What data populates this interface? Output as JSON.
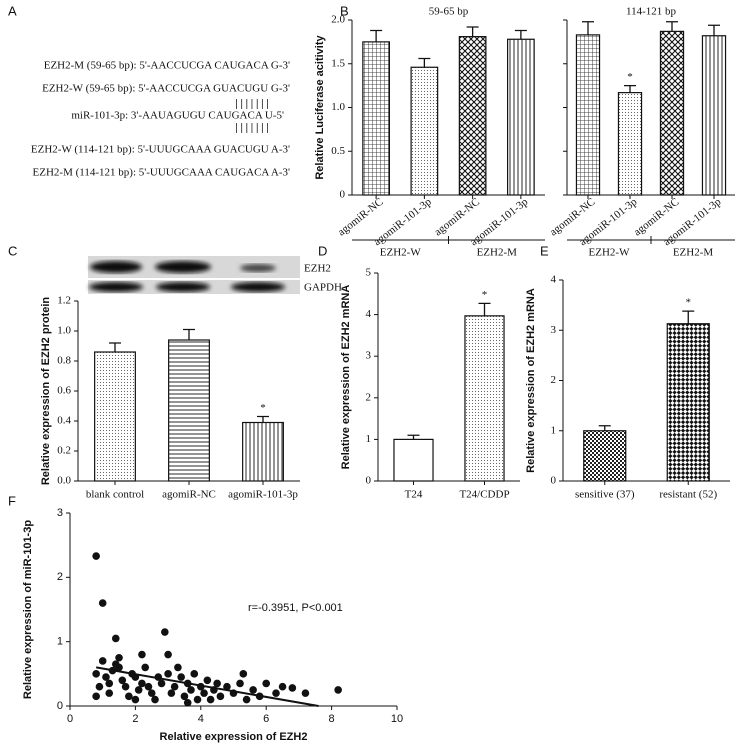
{
  "panel_labels": [
    "A",
    "B",
    "C",
    "D",
    "E",
    "F"
  ],
  "alignment": [
    "EZH2-M (59-65 bp): 5'-AACCUCGA CAUGACA G-3'",
    "EZH2-W (59-65 bp): 5'-AACCUCGA GUACUGU G-3'",
    "| | | | | | |",
    "miR-101-3p: 3'-AAUAGUGU CAUGACA U-5'",
    "| | | | | | |",
    "EZH2-W (114-121 bp): 5'-UUUGCAAA GUACUGU A-3'",
    "EZH2-M (114-121 bp): 5'-UUUGCAAA CAUGACA A-3'"
  ],
  "blot_labels": [
    "EZH2",
    "GAPDH"
  ],
  "chart_data": [
    {
      "type": "bar",
      "title": "59-65 bp",
      "ylabel": "Relative Luciferase acitivity",
      "categories": [
        "agomiR-NC",
        "agomiR-101-3p",
        "agomiR-NC",
        "agomiR-101-3p"
      ],
      "values": [
        1.75,
        1.46,
        1.81,
        1.78
      ],
      "errors": [
        0.13,
        0.1,
        0.11,
        0.1
      ],
      "patterns": [
        "grid",
        "dots",
        "diagcross",
        "vlines"
      ],
      "group_labels": [
        "EZH2-W",
        "EZH2-M"
      ],
      "label_rotation": 38,
      "ylim": [
        0,
        2
      ],
      "yticks": [
        0,
        0.5,
        {
          "value": 1,
          "label": "1.0"
        },
        1.5,
        {
          "value": 2,
          "label": "2.0"
        }
      ],
      "ytick_labels": true
    },
    {
      "type": "bar",
      "title": "114-121 bp",
      "categories": [
        "agomiR-NC",
        "agomiR-101-3p",
        "agomiR-NC",
        "agomiR-101-3p"
      ],
      "values": [
        1.83,
        1.17,
        1.87,
        1.82
      ],
      "errors": [
        0.15,
        0.08,
        0.11,
        0.12
      ],
      "significance": [
        null,
        "*",
        null,
        null
      ],
      "patterns": [
        "grid",
        "dots",
        "diagcross",
        "vlines"
      ],
      "group_labels": [
        "EZH2-W",
        "EZH2-M"
      ],
      "label_rotation": 38,
      "ylim": [
        0,
        2
      ],
      "yticks": [
        0,
        0.5,
        1,
        1.5,
        2
      ],
      "ytick_labels": false
    },
    {
      "type": "bar",
      "ylabel": "Relative expression of EZH2 protein",
      "categories": [
        "blank control",
        "agomiR-NC",
        "agomiR-101-3p"
      ],
      "values": [
        0.86,
        0.94,
        0.39
      ],
      "errors": [
        0.06,
        0.07,
        0.04
      ],
      "significance": [
        null,
        null,
        "*"
      ],
      "patterns": [
        "dots",
        "hlines",
        "vlines"
      ],
      "ylim": [
        0,
        1.2
      ],
      "yticks": [
        {
          "value": 0,
          "label": "0.0"
        },
        0.2,
        0.4,
        0.6,
        0.8,
        {
          "value": 1,
          "label": "1.0"
        },
        1.2
      ],
      "ytick_labels": true
    },
    {
      "type": "bar",
      "ylabel": "Relative expression of EZH2 mRNA",
      "categories": [
        "T24",
        "T24/CDDP"
      ],
      "values": [
        1.0,
        3.97
      ],
      "errors": [
        0.1,
        0.3
      ],
      "significance": [
        null,
        "*"
      ],
      "patterns": [
        "white",
        "dots"
      ],
      "ylim": [
        0,
        5
      ],
      "yticks": [
        0,
        1,
        2,
        3,
        4,
        5
      ],
      "ytick_labels": true
    },
    {
      "type": "bar",
      "ylabel": "Relative expression of EZH2 mRNA",
      "categories": [
        "sensitive (37)",
        "resistant (52)"
      ],
      "values": [
        1.0,
        3.13
      ],
      "errors": [
        0.1,
        0.25
      ],
      "significance": [
        null,
        "*"
      ],
      "patterns": [
        "checksmall",
        "checker"
      ],
      "ylim": [
        0,
        4
      ],
      "yticks": [
        0,
        1,
        2,
        3,
        4
      ],
      "ytick_labels": true
    },
    {
      "type": "scatter",
      "xlabel": "Relative expression of EZH2",
      "ylabel": "Relative expression of miR-101-3p",
      "annotation": "r=-0.3951, P<0.001",
      "x": [
        0.8,
        1.0,
        1.4,
        0.8,
        0.9,
        0.8,
        1.0,
        1.1,
        1.2,
        1.3,
        1.5,
        1.5,
        1.6,
        1.7,
        1.8,
        1.9,
        2.0,
        2.1,
        2.2,
        2.3,
        2.4,
        2.5,
        2.6,
        2.7,
        2.8,
        2.9,
        3.0,
        3.0,
        3.1,
        3.2,
        3.3,
        3.4,
        3.5,
        3.6,
        3.7,
        3.8,
        3.9,
        4.0,
        4.1,
        4.2,
        4.3,
        4.4,
        4.5,
        4.6,
        4.8,
        5.0,
        5.2,
        5.3,
        5.4,
        5.6,
        5.8,
        6.0,
        6.3,
        6.5,
        6.8,
        7.2,
        8.2,
        1.2,
        2.0,
        2.2,
        1.4,
        3.6
      ],
      "y": [
        2.33,
        1.6,
        1.05,
        0.5,
        0.3,
        0.15,
        0.7,
        0.45,
        0.35,
        0.55,
        0.75,
        0.6,
        0.4,
        0.3,
        0.15,
        0.5,
        0.45,
        0.25,
        0.35,
        0.6,
        0.3,
        0.2,
        0.1,
        0.45,
        0.35,
        1.15,
        0.8,
        0.5,
        0.2,
        0.3,
        0.6,
        0.45,
        0.15,
        0.35,
        0.25,
        0.5,
        0.1,
        0.3,
        0.2,
        0.4,
        0.1,
        0.25,
        0.35,
        0.15,
        0.3,
        0.2,
        0.35,
        0.5,
        0.1,
        0.25,
        0.15,
        0.35,
        0.2,
        0.3,
        0.28,
        0.2,
        0.25,
        0.2,
        0.1,
        0.8,
        0.65,
        0.05
      ],
      "fit_line": {
        "x": [
          0.8,
          7.6
        ],
        "y": [
          0.6,
          0.0
        ]
      },
      "color": "#111111",
      "xlim": [
        0,
        10
      ],
      "xticks": [
        0,
        2,
        4,
        6,
        8,
        10
      ],
      "ylim": [
        0,
        3
      ],
      "yticks": [
        0,
        1,
        2,
        3
      ]
    }
  ]
}
